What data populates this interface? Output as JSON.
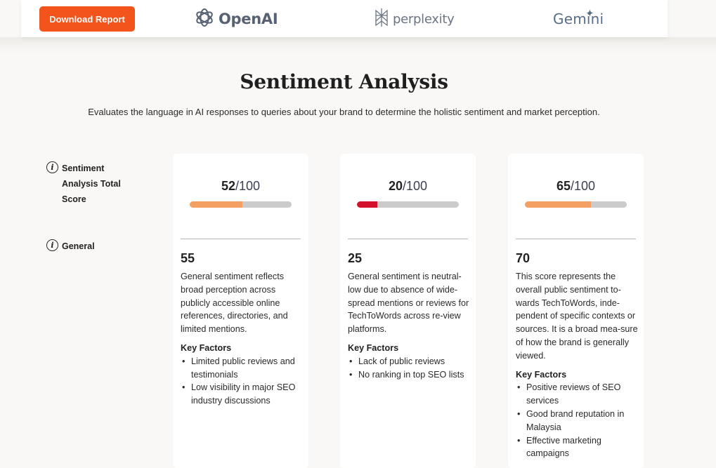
{
  "header": {
    "download_label": "Download Report",
    "logos": [
      {
        "name": "OpenAI",
        "icon": "openai-logo-icon"
      },
      {
        "name": "perplexity",
        "icon": "perplexity-logo-icon"
      },
      {
        "name": "Gemini",
        "icon": "gemini-sparkle-icon"
      }
    ],
    "accent_color": "#f2541b"
  },
  "section": {
    "title": "Sentiment Analysis",
    "subtitle": "Evaluates the language in AI responses to queries about your brand to determine the holistic sentiment and market perception."
  },
  "row_labels": {
    "total": "Sentiment Analysis Total Score",
    "general": "General",
    "info_icon": "info-icon"
  },
  "cards": [
    {
      "score": "52",
      "out_of": "/100",
      "progress": 0.52,
      "bar_color": "#f4a063",
      "general_score": "55",
      "general_text": "General sentiment reflects broad perception across publicly accessible online references, directories, and limited mentions.",
      "key_factors_title": "Key Factors",
      "key_factors": [
        "Limited public reviews and testimonials",
        "Low visibility in major SEO industry discussions"
      ]
    },
    {
      "score": "20",
      "out_of": "/100",
      "progress": 0.2,
      "bar_color": "#d4102c",
      "general_score": "25",
      "general_text": "General sentiment is neutral-low due to absence of wide-spread mentions or reviews for TechToWords across re-view platforms.",
      "key_factors_title": "Key Factors",
      "key_factors": [
        "Lack of public reviews",
        "No ranking in top SEO lists"
      ]
    },
    {
      "score": "65",
      "out_of": "/100",
      "progress": 0.65,
      "bar_color": "#f4a063",
      "general_score": "70",
      "general_text": "This score represents the overall public sentiment to-wards TechToWords, inde-pendent of specific contexts or sources. It is a broad mea-sure of how the brand is generally viewed.",
      "key_factors_title": "Key Factors",
      "key_factors": [
        "Positive reviews of SEO services",
        "Good brand reputation in Malaysia",
        "Effective marketing campaigns"
      ]
    }
  ]
}
